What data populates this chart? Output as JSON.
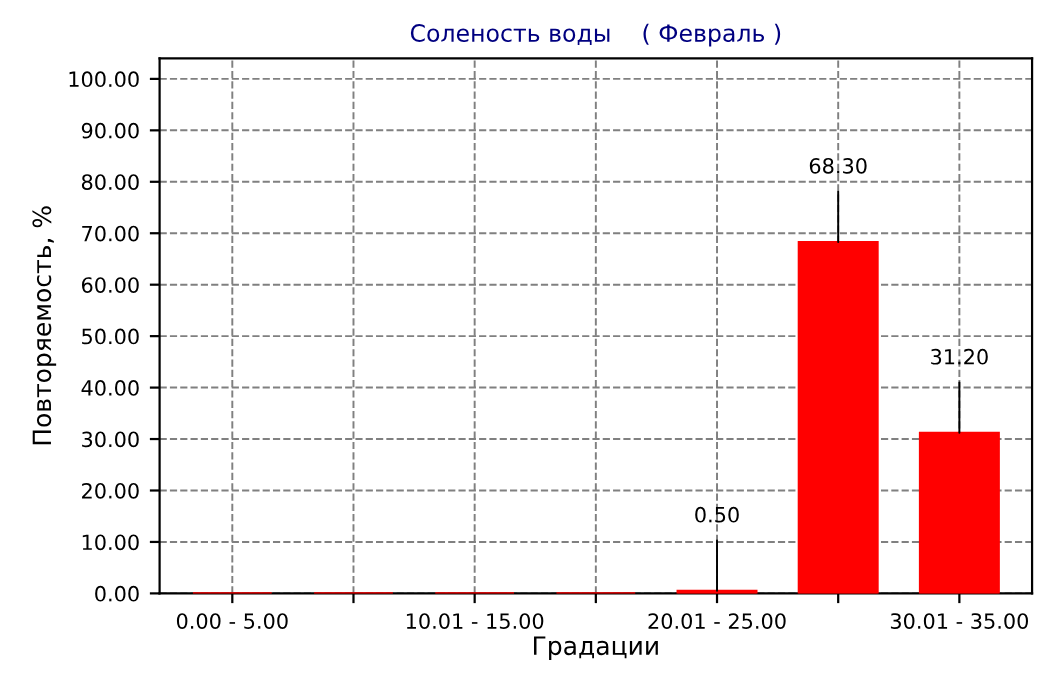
{
  "chart_data": {
    "type": "bar",
    "title": "Соленость воды    ( Февраль )",
    "xlabel": "Градации",
    "ylabel": "Повторяемость, %",
    "categories": [
      "0.00 - 5.00",
      null,
      "10.01 - 15.00",
      null,
      "20.01 - 25.00",
      null,
      "30.01 - 35.00"
    ],
    "values": [
      0,
      0,
      0,
      0,
      0.5,
      68.3,
      31.2
    ],
    "value_labels": [
      null,
      null,
      null,
      null,
      "0.50",
      "68.30",
      "31.20"
    ],
    "color": "#ff0000",
    "ylim": [
      0,
      104
    ],
    "yticks": [
      {
        "value": 0,
        "label": "0.00"
      },
      {
        "value": 10,
        "label": "10.00"
      },
      {
        "value": 20,
        "label": "20.00"
      },
      {
        "value": 30,
        "label": "30.00"
      },
      {
        "value": 40,
        "label": "40.00"
      },
      {
        "value": 50,
        "label": "50.00"
      },
      {
        "value": 60,
        "label": "60.00"
      },
      {
        "value": 70,
        "label": "70.00"
      },
      {
        "value": 80,
        "label": "80.00"
      },
      {
        "value": 90,
        "label": "90.00"
      },
      {
        "value": 100,
        "label": "100.00"
      }
    ],
    "grid": true
  }
}
